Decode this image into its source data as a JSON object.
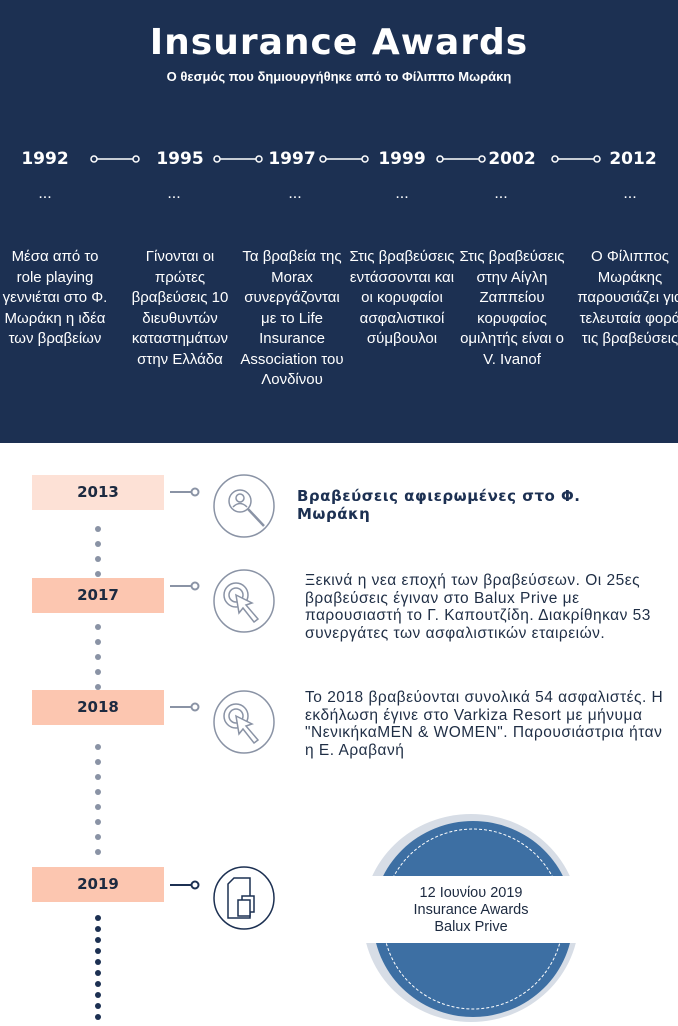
{
  "header": {
    "title": "Insurance Awards",
    "subtitle": "Ο θεσμός που δημιουργήθηκε από το Φίλιππο Μωράκη"
  },
  "top_timeline": [
    {
      "year": "1992",
      "dots": "...",
      "text": "Μέσα από το role playing γεννιέται  στο Φ. Μωράκη η ιδέα των βραβείων"
    },
    {
      "year": "1995",
      "dots": "...",
      "text": "Γίνονται οι πρώτες βραβεύσεις 10 διευθυντών καταστημάτων στην Ελλάδα"
    },
    {
      "year": "1997",
      "dots": "...",
      "text": "Τα βραβεία της Morax συνεργάζονται με το Life Insurance Association του Λονδίνου"
    },
    {
      "year": "1999",
      "dots": "...",
      "text": "Στις βραβεύσεις εντάσσονται και οι κορυφαίοι ασφαλιστικοί σύμβουλοι"
    },
    {
      "year": "2002",
      "dots": "...",
      "text": "Στις βραβεύσεις στην Αίγλη Ζαππείου κορυφαίος ομιλητής είναι ο V. Ivanof"
    },
    {
      "year": "2012",
      "dots": "...",
      "text": "Ο Φίλιππος Μωράκης παρουσιάζει για τελευταία φορά τις βραβεύσεις"
    }
  ],
  "events": [
    {
      "year": "2013",
      "icon": "search-user-icon",
      "text": "Βραβεύσεις αφιερωμένες στο Φ. Μωράκη"
    },
    {
      "year": "2017",
      "icon": "click-cursor-icon",
      "text": "Ξεκινά η νεα εποχή των βραβεύσεων. Οι 25ες βραβεύσεις έγιναν στο Balux Prive με παρουσιαστή το Γ. Καπουτζίδη. Διακρίθηκαν 53 συνεργάτες των ασφαλιστικών εταιρειών."
    },
    {
      "year": "2018",
      "icon": "click-cursor-icon",
      "text": "Το 2018 βραβεύονται συνολικά 54 ασφαλιστές. Η εκδήλωση έγινε στο Varkiza Resort με μήνυμα \"ΝενικήκαMEN & WOMEN\". Παρουσιάστρια ήταν η Ε. Αραβανή"
    },
    {
      "year": "2019",
      "icon": "documents-icon"
    }
  ],
  "seal": {
    "line1": "12 Ιουνίου 2019",
    "line2": "Insurance Awards",
    "line3": "Balux Prive"
  },
  "colors": {
    "navy": "#1c3052",
    "peach_light": "#fde1d6",
    "peach": "#fcc6b0",
    "seal_blue": "#3d6fa3"
  }
}
